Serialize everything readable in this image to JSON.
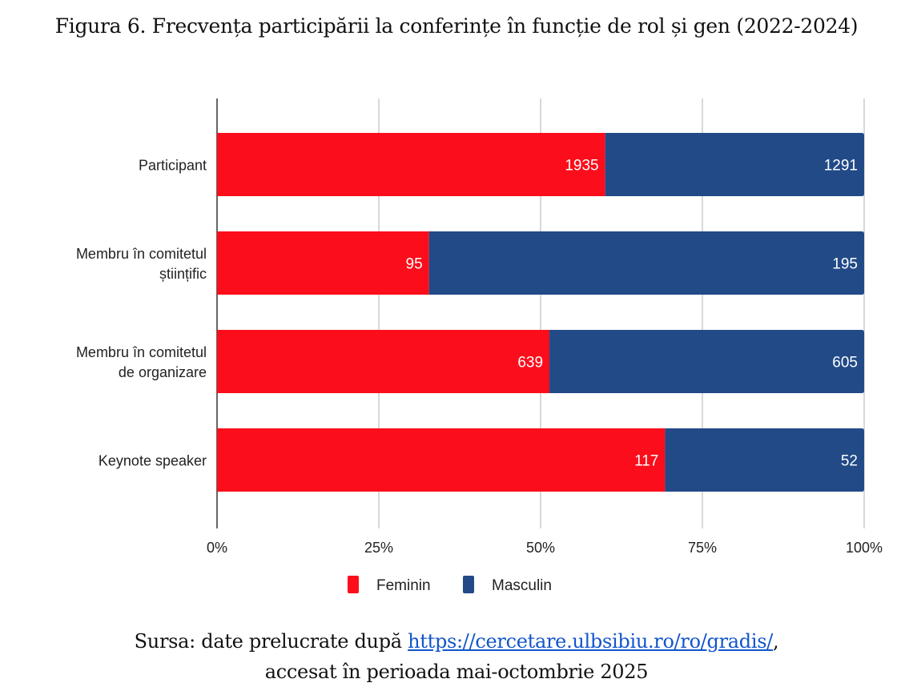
{
  "figure": {
    "title": "Figura 6. Frecvența participării la conferințe în funcție de rol și gen (2022-2024)",
    "source_prefix": "Sursa: date prelucrate după ",
    "source_link": "https://cercetare.ulbsibiu.ro/ro/gradis/",
    "source_suffix": ",",
    "source_line2": "accesat în perioada mai-octombrie 2025"
  },
  "chart_data": {
    "type": "bar",
    "orientation": "horizontal",
    "stacked": "percent",
    "title": "Figura 6. Frecvența participării la conferințe în funcție de rol și gen (2022-2024)",
    "xlabel": "",
    "ylabel": "",
    "categories": [
      [
        "Participant"
      ],
      [
        "Membru în comitetul",
        "științific"
      ],
      [
        "Membru în comitetul",
        "de organizare"
      ],
      [
        "Keynote speaker"
      ]
    ],
    "category_names": [
      "Participant",
      "Membru în comitetul științific",
      "Membru în comitetul de organizare",
      "Keynote speaker"
    ],
    "series": [
      {
        "name": "Feminin",
        "color": "#fc0d1b",
        "values": [
          1935,
          95,
          639,
          117
        ]
      },
      {
        "name": "Masculin",
        "color": "#214a87",
        "values": [
          1291,
          195,
          605,
          52
        ]
      }
    ],
    "xlim": [
      0,
      100
    ],
    "x_ticks": [
      "0%",
      "25%",
      "50%",
      "75%",
      "100%"
    ],
    "grid": true,
    "legend": "bottom",
    "data_labels": true
  }
}
